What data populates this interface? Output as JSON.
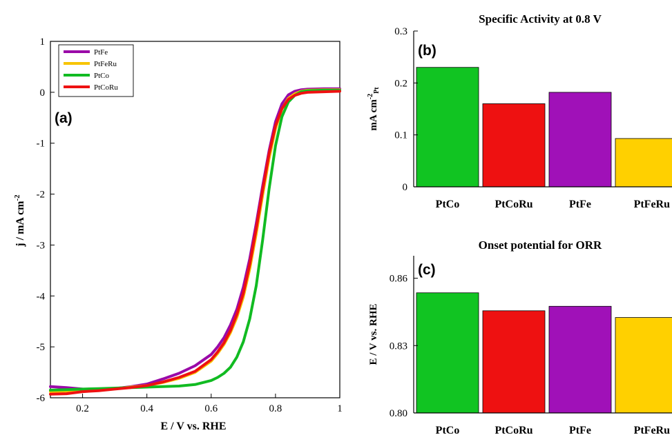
{
  "charts": {
    "a": {
      "panel_label": "(a)",
      "xlabel": "E / V vs. RHE",
      "ylabel_main": "j / mA cm",
      "ylabel_sup": "-2"
    },
    "b": {
      "panel_label": "(b)",
      "title": "Specific Activity at 0.8 V",
      "ylabel_main": "mA cm",
      "ylabel_sup": "-2",
      "ylabel_sub": "Pt"
    },
    "c": {
      "panel_label": "(c)",
      "title": "Onset potential for ORR",
      "ylabel": "E / V vs. RHE"
    }
  },
  "chart_data": [
    {
      "id": "a",
      "type": "line",
      "xlim": [
        0.1,
        1.0
      ],
      "ylim": [
        -6,
        1
      ],
      "xticks": [
        "0.2",
        "0.4",
        "0.6",
        "0.8",
        "1"
      ],
      "yticks": [
        "1",
        "0",
        "-1",
        "-2",
        "-3",
        "-4",
        "-5",
        "-6"
      ],
      "legend_position": "top-left",
      "series": [
        {
          "name": "PtFe",
          "color": "#9a0aa8",
          "x": [
            0.1,
            0.15,
            0.2,
            0.25,
            0.3,
            0.35,
            0.4,
            0.45,
            0.5,
            0.55,
            0.6,
            0.62,
            0.64,
            0.66,
            0.68,
            0.7,
            0.72,
            0.74,
            0.76,
            0.78,
            0.8,
            0.82,
            0.84,
            0.86,
            0.88,
            0.9,
            0.95,
            1.0
          ],
          "y": [
            -5.78,
            -5.8,
            -5.83,
            -5.85,
            -5.82,
            -5.78,
            -5.73,
            -5.63,
            -5.52,
            -5.37,
            -5.15,
            -5.0,
            -4.82,
            -4.57,
            -4.26,
            -3.83,
            -3.27,
            -2.58,
            -1.84,
            -1.15,
            -0.58,
            -0.23,
            -0.05,
            0.02,
            0.05,
            0.06,
            0.07,
            0.07
          ]
        },
        {
          "name": "PtFeRu",
          "color": "#f7c400",
          "x": [
            0.1,
            0.15,
            0.2,
            0.25,
            0.3,
            0.35,
            0.4,
            0.45,
            0.5,
            0.55,
            0.6,
            0.62,
            0.64,
            0.66,
            0.68,
            0.7,
            0.72,
            0.74,
            0.76,
            0.78,
            0.8,
            0.82,
            0.84,
            0.86,
            0.88,
            0.9,
            0.95,
            1.0
          ],
          "y": [
            -5.88,
            -5.87,
            -5.85,
            -5.84,
            -5.82,
            -5.79,
            -5.76,
            -5.7,
            -5.62,
            -5.5,
            -5.28,
            -5.13,
            -4.95,
            -4.72,
            -4.42,
            -4.02,
            -3.47,
            -2.78,
            -2.02,
            -1.3,
            -0.72,
            -0.33,
            -0.12,
            -0.03,
            0.02,
            0.04,
            0.05,
            0.05
          ]
        },
        {
          "name": "PtCo",
          "color": "#11bb22",
          "x": [
            0.1,
            0.15,
            0.2,
            0.25,
            0.3,
            0.35,
            0.4,
            0.45,
            0.5,
            0.55,
            0.6,
            0.62,
            0.64,
            0.66,
            0.68,
            0.7,
            0.72,
            0.74,
            0.76,
            0.78,
            0.8,
            0.82,
            0.84,
            0.86,
            0.88,
            0.9,
            0.95,
            1.0
          ],
          "y": [
            -5.85,
            -5.84,
            -5.83,
            -5.82,
            -5.81,
            -5.8,
            -5.79,
            -5.78,
            -5.77,
            -5.74,
            -5.66,
            -5.6,
            -5.52,
            -5.4,
            -5.2,
            -4.9,
            -4.45,
            -3.8,
            -2.9,
            -1.9,
            -1.05,
            -0.48,
            -0.19,
            -0.06,
            0.01,
            0.03,
            0.04,
            0.04
          ]
        },
        {
          "name": "PtCoRu",
          "color": "#ee1111",
          "x": [
            0.1,
            0.15,
            0.2,
            0.25,
            0.3,
            0.35,
            0.4,
            0.45,
            0.5,
            0.55,
            0.6,
            0.62,
            0.64,
            0.66,
            0.68,
            0.7,
            0.72,
            0.74,
            0.76,
            0.78,
            0.8,
            0.82,
            0.84,
            0.86,
            0.88,
            0.9,
            0.95,
            1.0
          ],
          "y": [
            -5.93,
            -5.92,
            -5.88,
            -5.86,
            -5.83,
            -5.8,
            -5.76,
            -5.69,
            -5.6,
            -5.48,
            -5.25,
            -5.1,
            -4.92,
            -4.68,
            -4.36,
            -3.95,
            -3.38,
            -2.68,
            -1.92,
            -1.21,
            -0.66,
            -0.32,
            -0.14,
            -0.06,
            -0.02,
            0.0,
            0.01,
            0.02
          ]
        }
      ]
    },
    {
      "id": "b",
      "type": "bar",
      "title": "Specific Activity at 0.8 V",
      "categories": [
        "PtCo",
        "PtCoRu",
        "PtFe",
        "PtFeRu"
      ],
      "values": [
        0.23,
        0.16,
        0.182,
        0.093
      ],
      "colors": [
        "#11c422",
        "#ee1111",
        "#a011b8",
        "#ffd000"
      ],
      "ylim": [
        0,
        0.3
      ],
      "yticks": [
        "0",
        "0.1",
        "0.2",
        "0.3"
      ]
    },
    {
      "id": "c",
      "type": "bar",
      "title": "Onset potential for ORR",
      "categories": [
        "PtCo",
        "PtCoRu",
        "PtFe",
        "PtFeRu"
      ],
      "values": [
        0.8535,
        0.8455,
        0.8475,
        0.8425
      ],
      "colors": [
        "#11c422",
        "#ee1111",
        "#a011b8",
        "#ffd000"
      ],
      "ylim": [
        0.8,
        0.87
      ],
      "yticks": [
        "0.80",
        "0.83",
        "0.86"
      ]
    }
  ]
}
